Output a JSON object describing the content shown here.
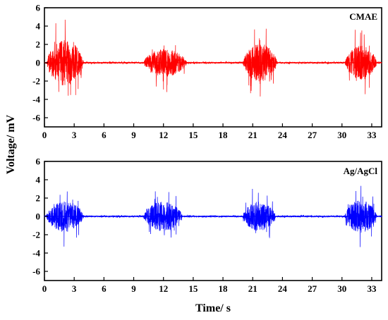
{
  "chart_data": {
    "type": "line",
    "xlabel": "Time/ s",
    "ylabel": "Voltage/ mV",
    "xlim": [
      0,
      34
    ],
    "xticks": [
      0,
      3,
      6,
      9,
      12,
      15,
      18,
      21,
      24,
      27,
      30,
      33
    ],
    "panels": [
      {
        "label": "CMAE",
        "color": "#ff0000",
        "ylim": [
          -7,
          6
        ],
        "yticks": [
          6,
          4,
          2,
          0,
          -2,
          -4,
          -6
        ],
        "baseline_noise_amplitude": 0.08,
        "bursts": [
          {
            "start": 0.2,
            "end": 4.5,
            "peak_max": 5.6,
            "peak_min": -5.3
          },
          {
            "start": 10.0,
            "end": 15.0,
            "peak_max": 3.4,
            "peak_min": -3.2
          },
          {
            "start": 20.0,
            "end": 24.0,
            "peak_max": 4.1,
            "peak_min": -4.6
          },
          {
            "start": 30.3,
            "end": 34.0,
            "peak_max": 3.6,
            "peak_min": -4.2
          }
        ]
      },
      {
        "label": "Ag/AgCl",
        "color": "#0000ff",
        "ylim": [
          -7,
          6
        ],
        "yticks": [
          6,
          4,
          2,
          0,
          -2,
          -4,
          -6
        ],
        "baseline_noise_amplitude": 0.08,
        "bursts": [
          {
            "start": 0.2,
            "end": 4.5,
            "peak_max": 3.8,
            "peak_min": -3.3
          },
          {
            "start": 10.0,
            "end": 14.5,
            "peak_max": 3.6,
            "peak_min": -3.0
          },
          {
            "start": 20.0,
            "end": 23.8,
            "peak_max": 3.0,
            "peak_min": -3.6
          },
          {
            "start": 30.3,
            "end": 34.0,
            "peak_max": 3.4,
            "peak_min": -4.0
          }
        ]
      }
    ]
  }
}
